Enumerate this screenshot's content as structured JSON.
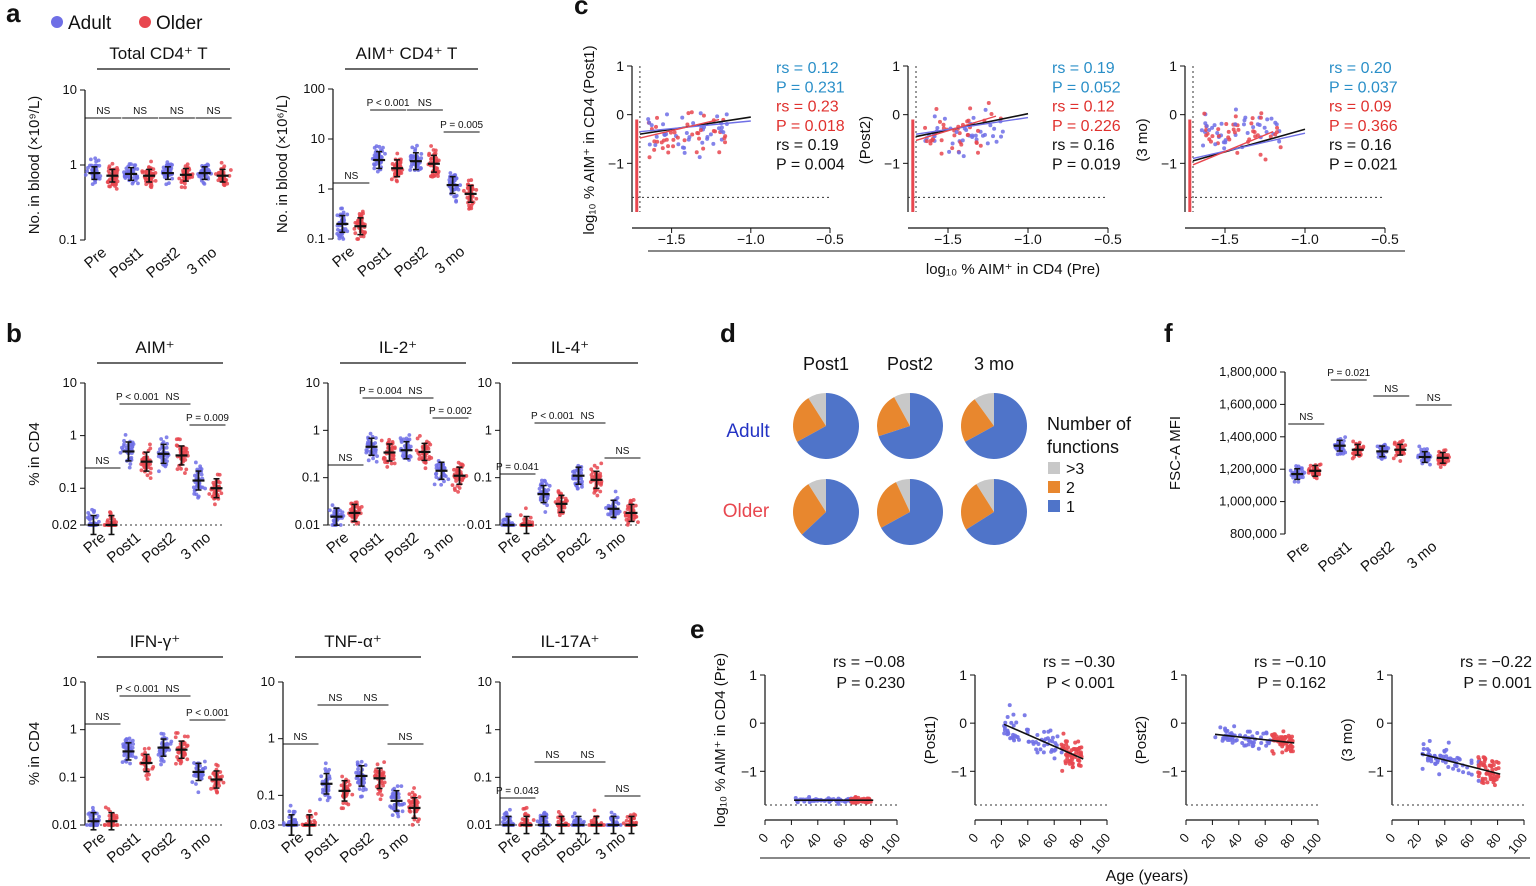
{
  "colors": {
    "adult": "#6f6fe6",
    "older": "#e8474f",
    "pie_gt3": "#c8c8c8",
    "pie_2": "#e8872e",
    "pie_1": "#4f74c9",
    "stat_blue": "#2a8fc8",
    "stat_red": "#e0312e",
    "stat_black": "#111111"
  },
  "panel_labels": [
    "a",
    "b",
    "c",
    "d",
    "e",
    "f"
  ],
  "legend": {
    "adult": "Adult",
    "older": "Older"
  },
  "xlabels": [
    "Pre",
    "Post1",
    "Post2",
    "3 mo"
  ],
  "panel_a": {
    "total": {
      "title": "Total CD4⁺ T",
      "ylabel": "No. in blood (×10⁹/L)",
      "yticks": [
        "10",
        "1",
        "0.1"
      ],
      "annotations": [
        "NS",
        "NS",
        "NS",
        "NS"
      ]
    },
    "aim": {
      "title": "AIM⁺ CD4⁺ T",
      "ylabel": "No. in blood (×10⁶/L)",
      "yticks": [
        "100",
        "10",
        "1",
        "0.1"
      ],
      "annotations": [
        "NS",
        "P < 0.001",
        "NS",
        "P = 0.005"
      ]
    }
  },
  "panel_b": {
    "ylabel": "% in CD4",
    "plots": [
      {
        "title": "AIM⁺",
        "yticks": [
          "10",
          "1",
          "0.1",
          "0.02"
        ],
        "annotations": [
          "NS",
          "P < 0.001",
          "NS",
          "P = 0.009"
        ]
      },
      {
        "title": "IL-2⁺",
        "yticks": [
          "10",
          "1",
          "0.1",
          "0.01"
        ],
        "annotations": [
          "NS",
          "P = 0.004",
          "NS",
          "P = 0.002"
        ]
      },
      {
        "title": "IL-4⁺",
        "yticks": [
          "10",
          "1",
          "0.1",
          "0.01"
        ],
        "annotations": [
          "P = 0.041",
          "P < 0.001",
          "NS",
          "NS"
        ]
      },
      {
        "title": "IFN-γ⁺",
        "yticks": [
          "10",
          "1",
          "0.1",
          "0.01"
        ],
        "annotations": [
          "NS",
          "P < 0.001",
          "NS",
          "P < 0.001"
        ]
      },
      {
        "title": "TNF-α⁺",
        "yticks": [
          "10",
          "1",
          "0.1",
          "0.03"
        ],
        "annotations": [
          "NS",
          "NS",
          "NS",
          "NS"
        ]
      },
      {
        "title": "IL-17A⁺",
        "yticks": [
          "10",
          "1",
          "0.1",
          "0.01"
        ],
        "annotations": [
          "P = 0.043",
          "NS",
          "NS",
          "NS"
        ]
      }
    ]
  },
  "panel_c": {
    "ylabels": [
      "log₁₀ % AIM⁺ in CD4 (Post1)",
      "(Post2)",
      "(3 mo)"
    ],
    "yticks": [
      "1",
      "0",
      "−1"
    ],
    "xticks": [
      "−1.5",
      "−1.0",
      "−0.5"
    ],
    "xlabel": "log₁₀ % AIM⁺ in CD4 (Pre)",
    "stats": [
      [
        "rs = 0.12",
        "P = 0.231",
        "rs = 0.23",
        "P = 0.018",
        "rs = 0.19",
        "P = 0.004"
      ],
      [
        "rs = 0.19",
        "P = 0.052",
        "rs = 0.12",
        "P = 0.226",
        "rs = 0.16",
        "P = 0.019"
      ],
      [
        "rs = 0.20",
        "P = 0.037",
        "rs = 0.09",
        "P = 0.366",
        "rs = 0.16",
        "P = 0.021"
      ]
    ]
  },
  "panel_d": {
    "columns": [
      "Post1",
      "Post2",
      "3 mo"
    ],
    "rows": [
      "Adult",
      "Older"
    ],
    "legend_title": "Number of functions",
    "legend_items": [
      ">3",
      "2",
      "1"
    ],
    "chart_data": {
      "type": "pie",
      "adult": [
        [
          0.09,
          0.24,
          0.67
        ],
        [
          0.08,
          0.22,
          0.7
        ],
        [
          0.1,
          0.23,
          0.67
        ]
      ],
      "older": [
        [
          0.09,
          0.28,
          0.63
        ],
        [
          0.07,
          0.26,
          0.67
        ],
        [
          0.09,
          0.25,
          0.66
        ]
      ]
    }
  },
  "panel_e": {
    "ylabels": [
      "log₁₀ % AIM⁺ in CD4 (Pre)",
      "(Post1)",
      "(Post2)",
      "(3 mo)"
    ],
    "yticks": [
      "1",
      "0",
      "−1"
    ],
    "xticks": [
      "0",
      "20",
      "40",
      "60",
      "80",
      "100"
    ],
    "xlabel": "Age (years)",
    "stats": [
      [
        "rs = −0.08",
        "P = 0.230"
      ],
      [
        "rs = −0.30",
        "P < 0.001"
      ],
      [
        "rs = −0.10",
        "P = 0.162"
      ],
      [
        "rs = −0.22",
        "P = 0.001"
      ]
    ]
  },
  "panel_f": {
    "ylabel": "FSC-A MFI",
    "yticks": [
      "1,800,000",
      "1,600,000",
      "1,400,000",
      "1,200,000",
      "1,000,000",
      "800,000"
    ],
    "annotations": [
      "NS",
      "P = 0.021",
      "NS",
      "NS"
    ]
  },
  "chart_data": [
    {
      "type": "scatter",
      "panel": "a-total",
      "medians_adult": [
        0.78,
        0.76,
        0.78,
        0.78
      ],
      "medians_older": [
        0.72,
        0.72,
        0.74,
        0.72
      ]
    },
    {
      "type": "scatter",
      "panel": "a-aim",
      "medians_adult": [
        0.2,
        3.8,
        3.6,
        1.2
      ],
      "medians_older": [
        0.18,
        2.6,
        3.2,
        0.8
      ]
    },
    {
      "type": "scatter",
      "panel": "b-AIM",
      "medians_adult": [
        0.02,
        0.5,
        0.45,
        0.14
      ],
      "medians_older": [
        0.02,
        0.32,
        0.42,
        0.1
      ]
    },
    {
      "type": "scatter",
      "panel": "b-IL-2",
      "medians_adult": [
        0.015,
        0.45,
        0.38,
        0.14
      ],
      "medians_older": [
        0.018,
        0.34,
        0.35,
        0.11
      ]
    },
    {
      "type": "scatter",
      "panel": "b-IL-4",
      "medians_adult": [
        0.01,
        0.045,
        0.11,
        0.022
      ],
      "medians_older": [
        0.01,
        0.028,
        0.09,
        0.018
      ]
    },
    {
      "type": "scatter",
      "panel": "b-IFN",
      "medians_adult": [
        0.012,
        0.35,
        0.42,
        0.13
      ],
      "medians_older": [
        0.012,
        0.2,
        0.38,
        0.09
      ]
    },
    {
      "type": "scatter",
      "panel": "b-TNF",
      "medians_adult": [
        0.03,
        0.16,
        0.22,
        0.08
      ],
      "medians_older": [
        0.03,
        0.12,
        0.2,
        0.06
      ]
    },
    {
      "type": "scatter",
      "panel": "b-IL-17A",
      "medians_adult": [
        0.01,
        0.01,
        0.01,
        0.01
      ],
      "medians_older": [
        0.01,
        0.01,
        0.01,
        0.01
      ]
    },
    {
      "type": "scatter",
      "panel": "f",
      "medians_adult": [
        1170000,
        1345000,
        1310000,
        1275000
      ],
      "medians_older": [
        1190000,
        1320000,
        1320000,
        1270000
      ]
    }
  ]
}
